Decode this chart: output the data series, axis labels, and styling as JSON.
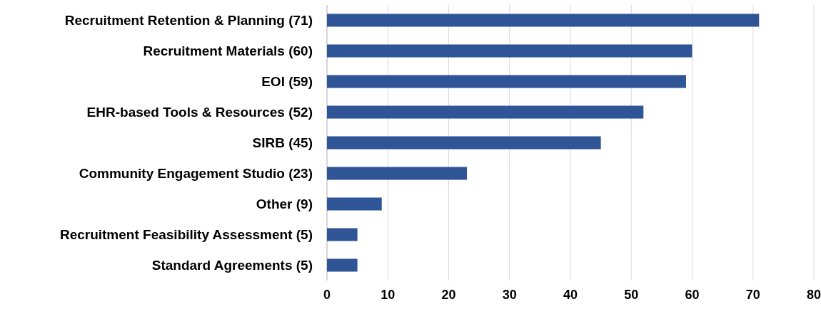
{
  "chart_data": {
    "type": "bar",
    "orientation": "horizontal",
    "categories": [
      "Recruitment Retention & Planning (71)",
      "Recruitment Materials (60)",
      "EOI (59)",
      "EHR-based Tools & Resources (52)",
      "SIRB (45)",
      "Community Engagement Studio (23)",
      "Other (9)",
      "Recruitment Feasibility Assessment (5)",
      "Standard Agreements (5)"
    ],
    "values": [
      71,
      60,
      59,
      52,
      45,
      23,
      9,
      5,
      5
    ],
    "color": "#2f5597",
    "xlim": [
      0,
      80
    ],
    "xticks": [
      0,
      10,
      20,
      30,
      40,
      50,
      60,
      70,
      80
    ],
    "grid": "x"
  }
}
